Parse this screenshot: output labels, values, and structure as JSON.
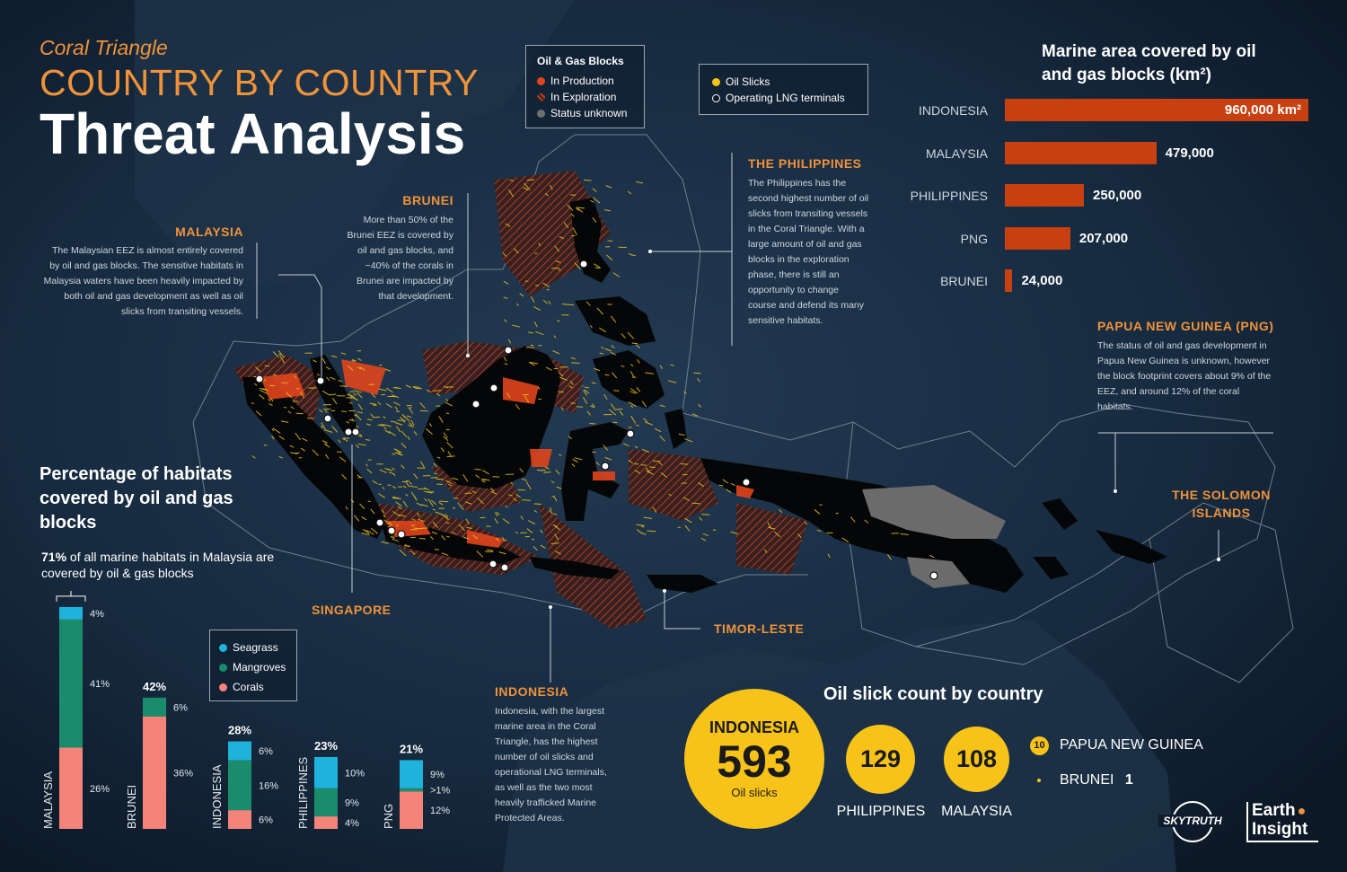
{
  "title": {
    "kicker": "Coral Triangle",
    "line1": "COUNTRY BY COUNTRY",
    "line2": "Threat Analysis"
  },
  "legend_blocks": {
    "title": "Oil & Gas Blocks",
    "items": [
      {
        "label": "In Production",
        "color": "#e0451d"
      },
      {
        "label": "In Exploration",
        "color": "#b8412a"
      },
      {
        "label": "Status unknown",
        "color": "#6f6f6f"
      }
    ]
  },
  "legend_slicks": {
    "items": [
      {
        "label": "Oil Slicks",
        "color": "#f7c318"
      },
      {
        "label": "Operating LNG terminals",
        "color": "#ffffff"
      }
    ]
  },
  "annotations": {
    "malaysia": {
      "title": "MALAYSIA",
      "text": "The Malaysian EEZ is almost entirely covered by oil and gas blocks. The sensitive habitats in Malaysia waters have been heavily impacted by both oil and gas development as well as oil slicks from transiting vessels."
    },
    "brunei": {
      "title": "BRUNEI",
      "text": "More than 50% of the Brunei EEZ is covered by oil and gas blocks, and ~40% of the corals in Brunei are impacted by that development."
    },
    "philippines": {
      "title": "THE PHILIPPINES",
      "text": "The Philippines has the second highest number of oil slicks from transiting vessels in the Coral Triangle. With a large amount of oil and gas blocks in the exploration phase, there is still an opportunity to change course and defend its many sensitive habitats."
    },
    "png": {
      "title": "PAPUA NEW GUINEA (PNG)",
      "text": "The status of oil and gas development in Papua New Guinea is unknown, however the block footprint covers about 9% of the EEZ, and around 12% of the coral habitats."
    },
    "indonesia": {
      "title": "INDONESIA",
      "text": "Indonesia, with the largest marine area in the Coral Triangle, has the highest number of oil slicks and operational LNG terminals, as well as the two most heavily trafficked Marine Protected Areas."
    },
    "singapore": {
      "title": "SINGAPORE"
    },
    "timor": {
      "title": "TIMOR-LESTE"
    },
    "solomon": {
      "title": "THE SOLOMON ISLANDS"
    }
  },
  "marine_area": {
    "title": "Marine area covered by oil and gas blocks (km²)",
    "bars": [
      {
        "country": "INDONESIA",
        "value": 960000,
        "label": "960,000 km²"
      },
      {
        "country": "MALAYSIA",
        "value": 479000,
        "label": "479,000"
      },
      {
        "country": "PHILIPPINES",
        "value": 250000,
        "label": "250,000"
      },
      {
        "country": "PNG",
        "value": 207000,
        "label": "207,000"
      },
      {
        "country": "BRUNEI",
        "value": 24000,
        "label": "24,000"
      }
    ],
    "color": "#c8400f"
  },
  "habitats": {
    "title": "Percentage of habitats covered by oil and gas blocks",
    "note_bold": "71%",
    "note_rest": " of all marine habitats in Malaysia are covered by oil & gas blocks",
    "legend": [
      {
        "label": "Seagrass",
        "color": "#1fb3dc"
      },
      {
        "label": "Mangroves",
        "color": "#1a8c6c"
      },
      {
        "label": "Corals",
        "color": "#f4837a"
      }
    ]
  },
  "chart_data": [
    {
      "type": "bar",
      "title": "Marine area covered by oil and gas blocks (km²)",
      "categories": [
        "INDONESIA",
        "MALAYSIA",
        "PHILIPPINES",
        "PNG",
        "BRUNEI"
      ],
      "values": [
        960000,
        479000,
        250000,
        207000,
        24000
      ]
    },
    {
      "type": "bar",
      "stacked": true,
      "title": "Percentage of habitats covered by oil and gas blocks",
      "categories": [
        "MALAYSIA",
        "BRUNEI",
        "INDONESIA",
        "PHILIPPINES",
        "PNG"
      ],
      "totals": [
        "71%",
        "42%",
        "28%",
        "23%",
        "21%"
      ],
      "series": [
        {
          "name": "Seagrass",
          "values": [
            4,
            0,
            6,
            10,
            9
          ],
          "labels": [
            "4%",
            "",
            "6%",
            "10%",
            "9%"
          ]
        },
        {
          "name": "Mangroves",
          "values": [
            41,
            6,
            16,
            9,
            1
          ],
          "labels": [
            "41%",
            "6%",
            "16%",
            "9%",
            ">1%"
          ]
        },
        {
          "name": "Corals",
          "values": [
            26,
            36,
            6,
            4,
            12
          ],
          "labels": [
            "26%",
            "36%",
            "6%",
            "4%",
            "12%"
          ]
        }
      ]
    },
    {
      "type": "bubble",
      "title": "Oil slick count by country",
      "categories": [
        "INDONESIA",
        "PHILIPPINES",
        "MALAYSIA",
        "PAPUA NEW GUINEA",
        "BRUNEI"
      ],
      "values": [
        593,
        129,
        108,
        10,
        1
      ]
    }
  ],
  "slicks": {
    "title": "Oil slick count by country",
    "indonesia": {
      "country": "INDONESIA",
      "count": "593",
      "unit": "Oil slicks"
    },
    "philippines": {
      "country": "PHILIPPINES",
      "count": "129"
    },
    "malaysia": {
      "country": "MALAYSIA",
      "count": "108"
    },
    "png": {
      "country": "PAPUA NEW GUINEA",
      "count": "10"
    },
    "brunei": {
      "country": "BRUNEI",
      "count": "1"
    }
  },
  "logos": {
    "skytruth": "SKYTRUTH",
    "earth_insight_1": "Earth",
    "earth_insight_2": "Insight"
  }
}
